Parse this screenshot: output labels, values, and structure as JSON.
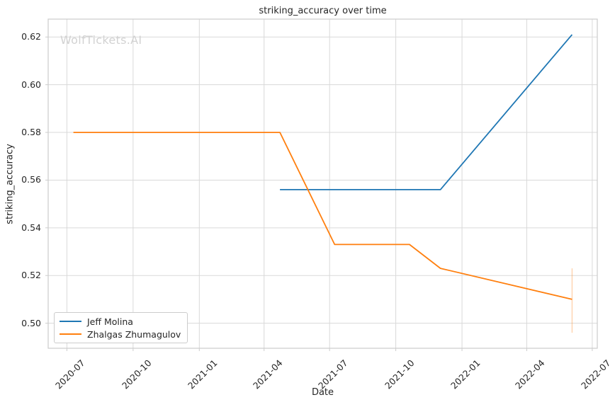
{
  "watermark": {
    "text": "WolfTickets.AI"
  },
  "chart_data": {
    "type": "line",
    "title": "striking_accuracy over time",
    "xlabel": "Date",
    "ylabel": "striking_accuracy",
    "grid": true,
    "legend": {
      "position": "lower left"
    },
    "xlim": [
      "2020-06-05",
      "2022-07-08"
    ],
    "ylim": [
      0.4895,
      0.6275
    ],
    "x_ticks": [
      {
        "label": "2020-07",
        "date": "2020-07-01"
      },
      {
        "label": "2020-10",
        "date": "2020-10-01"
      },
      {
        "label": "2021-01",
        "date": "2021-01-01"
      },
      {
        "label": "2021-04",
        "date": "2021-04-01"
      },
      {
        "label": "2021-07",
        "date": "2021-07-01"
      },
      {
        "label": "2021-10",
        "date": "2021-10-01"
      },
      {
        "label": "2022-01",
        "date": "2022-01-01"
      },
      {
        "label": "2022-04",
        "date": "2022-04-01"
      },
      {
        "label": "2022-07",
        "date": "2022-07-01"
      }
    ],
    "y_ticks": [
      {
        "label": "0.50",
        "value": 0.5
      },
      {
        "label": "0.52",
        "value": 0.52
      },
      {
        "label": "0.54",
        "value": 0.54
      },
      {
        "label": "0.56",
        "value": 0.56
      },
      {
        "label": "0.58",
        "value": 0.58
      },
      {
        "label": "0.60",
        "value": 0.6
      },
      {
        "label": "0.62",
        "value": 0.62
      }
    ],
    "series": [
      {
        "name": "Jeff Molina",
        "color": "#1f77b4",
        "points": [
          [
            "2021-04-23",
            0.556
          ],
          [
            "2021-12-02",
            0.556
          ],
          [
            "2022-06-03",
            0.621
          ]
        ]
      },
      {
        "name": "Zhalgas Zhumagulov",
        "color": "#ff7f0e",
        "points": [
          [
            "2020-07-10",
            0.58
          ],
          [
            "2021-04-23",
            0.58
          ],
          [
            "2021-07-08",
            0.533
          ],
          [
            "2021-10-20",
            0.533
          ],
          [
            "2021-12-02",
            0.523
          ],
          [
            "2022-06-03",
            0.51
          ]
        ],
        "error_bar": {
          "date": "2022-06-03",
          "low": 0.496,
          "high": 0.523
        }
      }
    ]
  },
  "style": {
    "grid_color": "#d9d9d9",
    "spine_color": "#cccccc",
    "tick_color": "#cccccc",
    "text_color": "#262626",
    "watermark_color": "#d2d2d2"
  }
}
